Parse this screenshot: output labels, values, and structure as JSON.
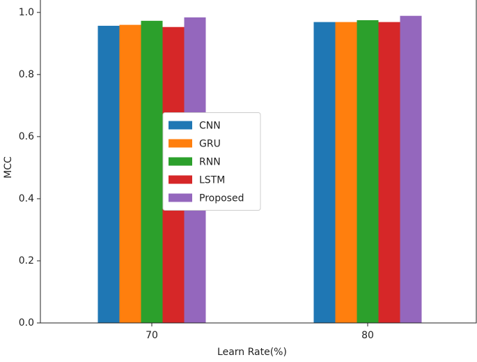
{
  "chart_data": {
    "type": "bar",
    "xlabel": "Learn Rate(%)",
    "ylabel": "MCC",
    "categories": [
      "70",
      "80"
    ],
    "series": [
      {
        "name": "CNN",
        "color": "#1f77b4",
        "values": [
          0.957,
          0.969
        ]
      },
      {
        "name": "GRU",
        "color": "#ff7f0e",
        "values": [
          0.96,
          0.969
        ]
      },
      {
        "name": "RNN",
        "color": "#2ca02c",
        "values": [
          0.973,
          0.975
        ]
      },
      {
        "name": "LSTM",
        "color": "#d62728",
        "values": [
          0.953,
          0.969
        ]
      },
      {
        "name": "Proposed",
        "color": "#9467bd",
        "values": [
          0.984,
          0.989
        ]
      }
    ],
    "ylim": [
      0,
      1.04
    ],
    "yticks": [
      {
        "value": 0,
        "label": "0.0"
      },
      0.2,
      0.4,
      0.6,
      0.8,
      {
        "value": 1,
        "label": "1.0"
      }
    ],
    "legend": "center"
  }
}
